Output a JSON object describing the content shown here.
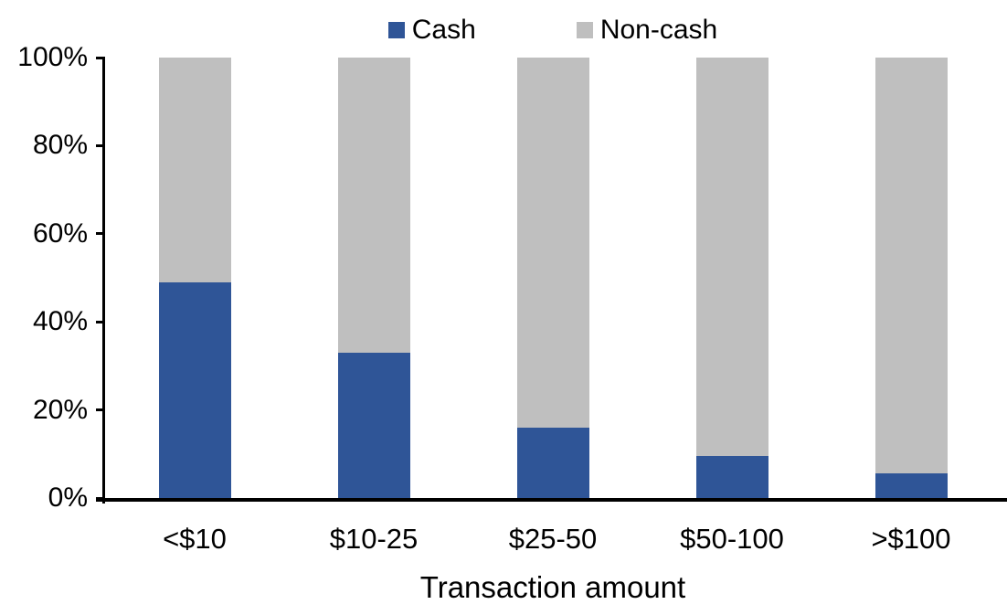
{
  "chart_data": {
    "type": "bar",
    "stacked": true,
    "percent_stacked": true,
    "title": "",
    "xlabel": "Transaction amount",
    "ylabel": "",
    "categories": [
      "<$10",
      "$10-25",
      "$25-50",
      "$50-100",
      ">$100"
    ],
    "series": [
      {
        "name": "Cash",
        "color": "#2F5597",
        "values": [
          49,
          33,
          16,
          9.5,
          5.5
        ]
      },
      {
        "name": "Non-cash",
        "color": "#BFBFBF",
        "values": [
          51,
          67,
          84,
          90.5,
          94.5
        ]
      }
    ],
    "ylim": [
      0,
      100
    ],
    "yticks": [
      {
        "value": 0,
        "label": "0%"
      },
      {
        "value": 20,
        "label": "20%"
      },
      {
        "value": 40,
        "label": "40%"
      },
      {
        "value": 60,
        "label": "60%"
      },
      {
        "value": 80,
        "label": "80%"
      },
      {
        "value": 100,
        "label": "100%"
      }
    ],
    "grid": false,
    "legend_position": "top",
    "axis_color": "#000000",
    "background_color": "#FFFFFF"
  }
}
